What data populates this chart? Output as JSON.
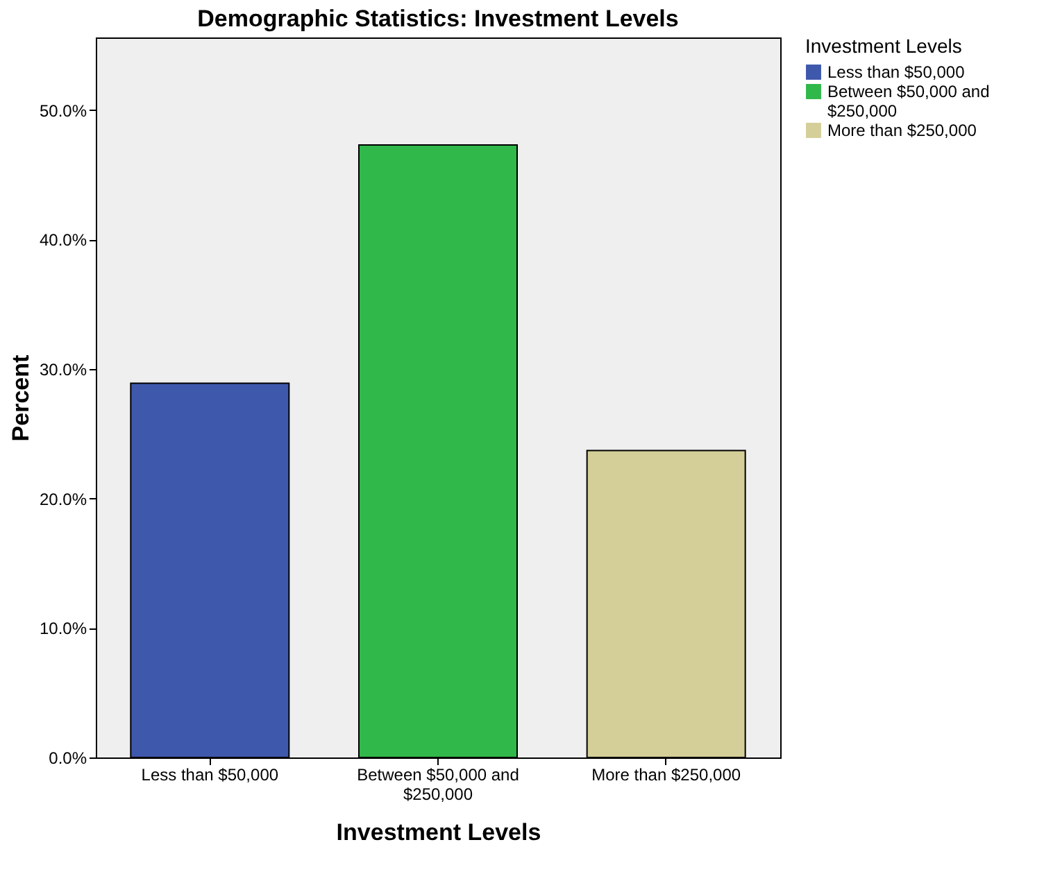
{
  "chart_data": {
    "type": "bar",
    "title": "Demographic Statistics: Investment Levels",
    "xlabel": "Investment Levels",
    "ylabel": "Percent",
    "legend_title": "Investment Levels",
    "categories": [
      "Less than $50,000",
      "Between $50,000 and $250,000",
      "More than $250,000"
    ],
    "series": [
      {
        "name": "Less than $50,000",
        "color": "#3e58ac",
        "values": [
          28.9,
          null,
          null
        ]
      },
      {
        "name": "Between $50,000 and $250,000",
        "color": "#30b84a",
        "values": [
          null,
          47.3,
          null
        ]
      },
      {
        "name": "More than $250,000",
        "color": "#d4cf98",
        "values": [
          null,
          null,
          23.7
        ]
      }
    ],
    "ylim": [
      0,
      55.6
    ],
    "yticks": [
      {
        "value": 0,
        "label": "0.0%"
      },
      {
        "value": 10,
        "label": "10.0%"
      },
      {
        "value": 20,
        "label": "20.0%"
      },
      {
        "value": 30,
        "label": "30.0%"
      },
      {
        "value": 40,
        "label": "40.0%"
      },
      {
        "value": 50,
        "label": "50.0%"
      }
    ],
    "grid": false,
    "legend": "top right"
  }
}
